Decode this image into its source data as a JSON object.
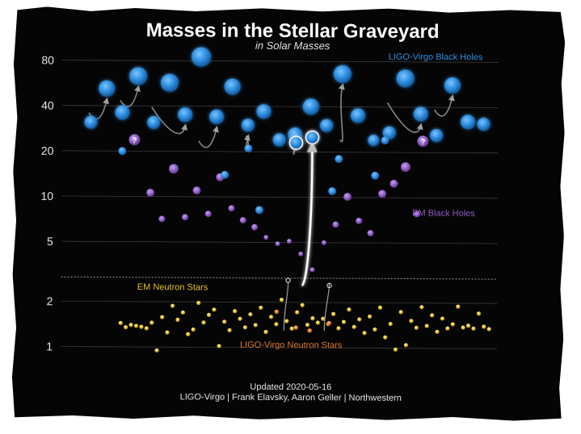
{
  "chart_data": {
    "type": "scatter",
    "title": "Masses in the Stellar Graveyard",
    "subtitle": "in Solar Masses",
    "y_scale": "log",
    "ylim": [
      0.85,
      110
    ],
    "y_ticks": [
      1,
      2,
      5,
      10,
      20,
      40,
      80
    ],
    "y_tick_labels": [
      "1",
      "2",
      "5",
      "10",
      "20",
      "40",
      "80"
    ],
    "grid": true,
    "footer": [
      "Updated 2020-05-16",
      "LIGO-Virgo | Frank Elavsky, Aaron Geller | Northwestern"
    ],
    "colors": {
      "ligo_bh": "#2f8fe0",
      "em_bh": "#8d5cc4",
      "em_ns": "#e8c12e",
      "ligo_ns": "#e07a2a",
      "background": "#050505",
      "grid": "#3a3a3a",
      "text": "#e8e8e8"
    },
    "series": [
      {
        "name": "LIGO-Virgo Black Holes",
        "kind": "ligo_bh",
        "points": [
          {
            "x": 1,
            "y": 31,
            "s": 8
          },
          {
            "x": 2,
            "y": 52,
            "s": 10
          },
          {
            "x": 3,
            "y": 36,
            "s": 9
          },
          {
            "x": 4,
            "y": 63,
            "s": 11
          },
          {
            "x": 5,
            "y": 31,
            "s": 8
          },
          {
            "x": 6,
            "y": 57,
            "s": 11
          },
          {
            "x": 7,
            "y": 35,
            "s": 9
          },
          {
            "x": 8,
            "y": 85,
            "s": 12
          },
          {
            "x": 9,
            "y": 34,
            "s": 9
          },
          {
            "x": 10,
            "y": 54,
            "s": 10
          },
          {
            "x": 11,
            "y": 30,
            "s": 8
          },
          {
            "x": 12,
            "y": 37,
            "s": 9
          },
          {
            "x": 13,
            "y": 24,
            "s": 8
          },
          {
            "x": 14,
            "y": 26,
            "s": 9
          },
          {
            "x": 15,
            "y": 40,
            "s": 10
          },
          {
            "x": 16,
            "y": 30,
            "s": 8
          },
          {
            "x": 17,
            "y": 66,
            "s": 11
          },
          {
            "x": 18,
            "y": 35,
            "s": 9
          },
          {
            "x": 19,
            "y": 24,
            "s": 7
          },
          {
            "x": 20,
            "y": 27,
            "s": 8
          },
          {
            "x": 21,
            "y": 62,
            "s": 11
          },
          {
            "x": 22,
            "y": 36,
            "s": 9
          },
          {
            "x": 23,
            "y": 26,
            "s": 8
          },
          {
            "x": 24,
            "y": 56,
            "s": 10
          },
          {
            "x": 25,
            "y": 32,
            "s": 9
          },
          {
            "x": 26,
            "y": 31,
            "s": 8
          }
        ]
      },
      {
        "name": "EM Black Holes",
        "kind": "em_bh",
        "points": [
          {
            "x": 1,
            "y": 10.6,
            "s": 5
          },
          {
            "x": 2,
            "y": 7.1,
            "s": 4
          },
          {
            "x": 3,
            "y": 15.3,
            "s": 6
          },
          {
            "x": 4,
            "y": 7.3,
            "s": 4
          },
          {
            "x": 5,
            "y": 11.0,
            "s": 5
          },
          {
            "x": 6,
            "y": 7.7,
            "s": 4
          },
          {
            "x": 7,
            "y": 13.5,
            "s": 5
          },
          {
            "x": 8,
            "y": 8.4,
            "s": 4
          },
          {
            "x": 9,
            "y": 7.0,
            "s": 4
          },
          {
            "x": 10,
            "y": 6.3,
            "s": 4
          },
          {
            "x": 11,
            "y": 5.4,
            "s": 3
          },
          {
            "x": 12,
            "y": 4.9,
            "s": 3
          },
          {
            "x": 13,
            "y": 5.1,
            "s": 3
          },
          {
            "x": 14,
            "y": 4.2,
            "s": 3
          },
          {
            "x": 15,
            "y": 3.3,
            "s": 3
          },
          {
            "x": 16,
            "y": 5.0,
            "s": 3
          },
          {
            "x": 17,
            "y": 6.6,
            "s": 4
          },
          {
            "x": 18,
            "y": 10.1,
            "s": 5
          },
          {
            "x": 19,
            "y": 7.0,
            "s": 4
          },
          {
            "x": 20,
            "y": 5.8,
            "s": 4
          },
          {
            "x": 21,
            "y": 10.6,
            "s": 5
          },
          {
            "x": 22,
            "y": 12.4,
            "s": 5
          },
          {
            "x": 23,
            "y": 16.0,
            "s": 6
          },
          {
            "x": 24,
            "y": 7.8,
            "s": 4
          }
        ]
      },
      {
        "name": "EM Neutron Stars",
        "kind": "em_ns",
        "points": [
          {
            "x": 1,
            "y": 1.44
          },
          {
            "x": 2,
            "y": 1.35
          },
          {
            "x": 3,
            "y": 1.4
          },
          {
            "x": 4,
            "y": 1.38
          },
          {
            "x": 5,
            "y": 1.36
          },
          {
            "x": 6,
            "y": 1.33
          },
          {
            "x": 7,
            "y": 1.45
          },
          {
            "x": 8,
            "y": 0.95
          },
          {
            "x": 9,
            "y": 1.58
          },
          {
            "x": 10,
            "y": 1.25
          },
          {
            "x": 11,
            "y": 1.88
          },
          {
            "x": 12,
            "y": 1.52
          },
          {
            "x": 13,
            "y": 1.7
          },
          {
            "x": 14,
            "y": 1.22
          },
          {
            "x": 15,
            "y": 1.31
          },
          {
            "x": 16,
            "y": 1.97
          },
          {
            "x": 17,
            "y": 1.46
          },
          {
            "x": 18,
            "y": 1.64
          },
          {
            "x": 19,
            "y": 1.78
          },
          {
            "x": 20,
            "y": 1.02
          },
          {
            "x": 21,
            "y": 1.48
          },
          {
            "x": 22,
            "y": 1.3
          },
          {
            "x": 23,
            "y": 1.74
          },
          {
            "x": 24,
            "y": 1.55
          },
          {
            "x": 25,
            "y": 1.36
          },
          {
            "x": 26,
            "y": 1.66
          },
          {
            "x": 27,
            "y": 1.41
          },
          {
            "x": 28,
            "y": 1.84
          },
          {
            "x": 29,
            "y": 1.27
          },
          {
            "x": 30,
            "y": 1.6
          },
          {
            "x": 31,
            "y": 1.43
          },
          {
            "x": 32,
            "y": 2.08
          },
          {
            "x": 33,
            "y": 1.5
          },
          {
            "x": 34,
            "y": 1.34
          },
          {
            "x": 35,
            "y": 1.72
          },
          {
            "x": 36,
            "y": 1.92
          },
          {
            "x": 37,
            "y": 1.42
          },
          {
            "x": 38,
            "y": 1.57
          },
          {
            "x": 39,
            "y": 1.47
          },
          {
            "x": 40,
            "y": 1.56
          },
          {
            "x": 41,
            "y": 1.44
          },
          {
            "x": 42,
            "y": 1.68
          },
          {
            "x": 43,
            "y": 1.35
          },
          {
            "x": 44,
            "y": 1.49
          },
          {
            "x": 45,
            "y": 1.8
          },
          {
            "x": 46,
            "y": 1.38
          },
          {
            "x": 47,
            "y": 1.55
          },
          {
            "x": 48,
            "y": 1.26
          },
          {
            "x": 49,
            "y": 1.62
          },
          {
            "x": 50,
            "y": 1.33
          },
          {
            "x": 51,
            "y": 1.86
          },
          {
            "x": 52,
            "y": 1.18
          },
          {
            "x": 53,
            "y": 1.45
          },
          {
            "x": 54,
            "y": 0.98
          },
          {
            "x": 55,
            "y": 1.74
          },
          {
            "x": 56,
            "y": 1.05
          },
          {
            "x": 57,
            "y": 1.52
          },
          {
            "x": 58,
            "y": 1.37
          },
          {
            "x": 59,
            "y": 1.88
          },
          {
            "x": 60,
            "y": 1.41
          },
          {
            "x": 61,
            "y": 1.66
          },
          {
            "x": 62,
            "y": 1.29
          },
          {
            "x": 63,
            "y": 1.58
          },
          {
            "x": 64,
            "y": 1.36
          },
          {
            "x": 65,
            "y": 1.45
          },
          {
            "x": 66,
            "y": 1.9
          },
          {
            "x": 67,
            "y": 1.38
          },
          {
            "x": 68,
            "y": 1.42
          },
          {
            "x": 69,
            "y": 1.36
          },
          {
            "x": 70,
            "y": 1.71
          },
          {
            "x": 71,
            "y": 1.4
          },
          {
            "x": 72,
            "y": 1.35
          }
        ]
      },
      {
        "name": "LIGO-Virgo Neutron Stars",
        "kind": "ligo_ns",
        "points": [
          {
            "x": 1,
            "y": 1.73
          },
          {
            "x": 2,
            "y": 1.36
          },
          {
            "x": 3,
            "y": 1.3
          },
          {
            "x": 4,
            "y": 1.46
          }
        ]
      }
    ],
    "mergers": [
      {
        "a": [
          1,
          31
        ],
        "b": [
          2,
          20
        ],
        "r": [
          3,
          52
        ]
      },
      {
        "a": [
          4,
          37
        ],
        "b": [
          5,
          28
        ],
        "r": [
          6,
          63
        ]
      },
      {
        "a": [
          7,
          31
        ],
        "b": [
          8,
          24
        ],
        "r": [
          9,
          57
        ]
      },
      {
        "a": [
          10,
          36
        ],
        "b": [
          11,
          27
        ],
        "r": [
          12,
          85
        ]
      },
      {
        "a": [
          13,
          20
        ],
        "b": [
          14,
          15
        ],
        "r": [
          15,
          40
        ]
      },
      {
        "a": [
          16,
          14
        ],
        "b": [
          17,
          10
        ],
        "r": [
          18,
          26
        ]
      },
      {
        "a": [
          19,
          11
        ],
        "b": [
          20,
          8
        ],
        "r": [
          21,
          62
        ]
      },
      {
        "a": [
          22,
          20
        ],
        "b": [
          23,
          13
        ],
        "r": [
          24,
          56
        ]
      },
      {
        "a": [
          25,
          7
        ],
        "b": [
          26,
          4
        ],
        "r": [
          27,
          54
        ]
      }
    ],
    "unknown_markers": [
      {
        "y": 20.5,
        "label": "?"
      },
      {
        "y": 20.5,
        "label": "?"
      }
    ]
  }
}
